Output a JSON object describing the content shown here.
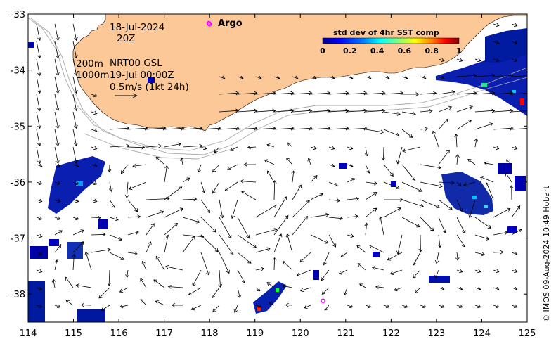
{
  "map": {
    "date_line": "18-Jul-2024",
    "time_line": "20Z",
    "depth_line_1": "200m",
    "depth_line_2": "1000m",
    "product_line": "NRT00 GSL",
    "valid_time": "19-Jul 00:00Z",
    "scale_label": "0.5m/s (1kt 24h)",
    "argo_label": "Argo",
    "credit": "© IMOS 09-Aug-2024 10:49 Hobart",
    "colors": {
      "land": "#fdc898",
      "argo_marker": "#ff00ff",
      "bathy_contour": "#a8a8a8",
      "vector": "#000000"
    }
  },
  "legend": {
    "title": "std dev of 4hr SST comp",
    "ticks": [
      "0",
      "0.2",
      "0.4",
      "0.6",
      "0.8",
      "1"
    ],
    "colormap": [
      "#00008f",
      "#0000ff",
      "#0080ff",
      "#00ffff",
      "#80ff80",
      "#ffff00",
      "#ff8000",
      "#ff0000",
      "#800000"
    ]
  },
  "axes": {
    "x_ticks": [
      "114",
      "115",
      "116",
      "117",
      "118",
      "119",
      "120",
      "121",
      "122",
      "123",
      "124",
      "125"
    ],
    "y_ticks": [
      "-33",
      "-34",
      "-35",
      "-36",
      "-37",
      "-38"
    ],
    "x_range": [
      114,
      125
    ],
    "y_range": [
      -38.5,
      -33
    ]
  },
  "argo_floats": [
    {
      "lon": 118.0,
      "lat": -33.18
    },
    {
      "lon": 120.5,
      "lat": -38.12
    }
  ]
}
